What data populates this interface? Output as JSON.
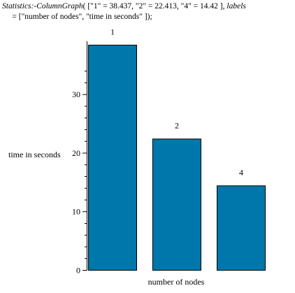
{
  "command": {
    "fn": "Statistics:-ColumnGraph",
    "args": "( [\"1\" = 38.437, \"2\" = 22.413, \"4\" = 14.42 ], ",
    "kw": "labels",
    "line2": "     = [\"number of nodes\", \"time in seconds\" ]);"
  },
  "chart_data": {
    "type": "bar",
    "categories": [
      "1",
      "2",
      "4"
    ],
    "values": [
      38.437,
      22.413,
      14.42
    ],
    "xlabel": "number of nodes",
    "ylabel": "time in seconds",
    "ylim": [
      0,
      38.437
    ],
    "yticks": [
      0,
      10,
      20,
      30
    ],
    "grid": false,
    "bar_color": "#0077aa"
  }
}
